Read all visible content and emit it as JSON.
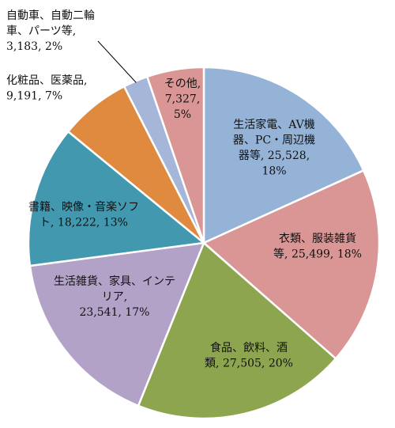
{
  "chart_data": {
    "type": "pie",
    "title": "",
    "start_angle_deg": 0,
    "direction": "clockwise",
    "slices": [
      {
        "lines": [
          "生活家電、AV機",
          "器、PC・周辺機",
          "器等, 25,528,",
          "18%"
        ],
        "value": 25528,
        "percent": "18%",
        "color": "#95b3d7"
      },
      {
        "lines": [
          "衣類、服装雑貨",
          "等, 25,499, 18%"
        ],
        "value": 25499,
        "percent": "18%",
        "color": "#d99694"
      },
      {
        "lines": [
          "食品、飲料、酒",
          "類, 27,505, 20%"
        ],
        "value": 27505,
        "percent": "20%",
        "color": "#8ea54f"
      },
      {
        "lines": [
          "生活雑貨、家具、インテ",
          "リア,",
          "23,541, 17%"
        ],
        "value": 23541,
        "percent": "17%",
        "color": "#b3a2c7"
      },
      {
        "lines": [
          "書籍、映像・音楽ソフ",
          "ト, 18,222, 13%"
        ],
        "value": 18222,
        "percent": "13%",
        "color": "#4198af"
      },
      {
        "lines": [
          "化粧品、医薬品,",
          "9,191, 7%"
        ],
        "value": 9191,
        "percent": "7%",
        "color": "#e08a3f"
      },
      {
        "lines": [
          "自動車、自動二輪",
          "車、パーツ等,",
          "3,183, 2%"
        ],
        "value": 3183,
        "percent": "2%",
        "color": "#a5b6d8"
      },
      {
        "lines": [
          "その他,",
          "7,327,",
          "5%"
        ],
        "value": 7327,
        "percent": "5%",
        "color": "#d99694"
      }
    ]
  }
}
